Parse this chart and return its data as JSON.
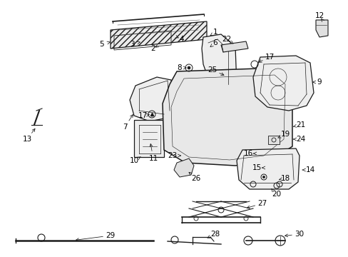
{
  "bg_color": "#ffffff",
  "line_color": "#2a2a2a",
  "fig_width": 4.89,
  "fig_height": 3.6,
  "dpi": 100,
  "label_fontsize": 7.5,
  "leader_lw": 0.6,
  "part_lw": 0.9,
  "part_fill": "#f2f2f2",
  "part_edge": "#1a1a1a"
}
